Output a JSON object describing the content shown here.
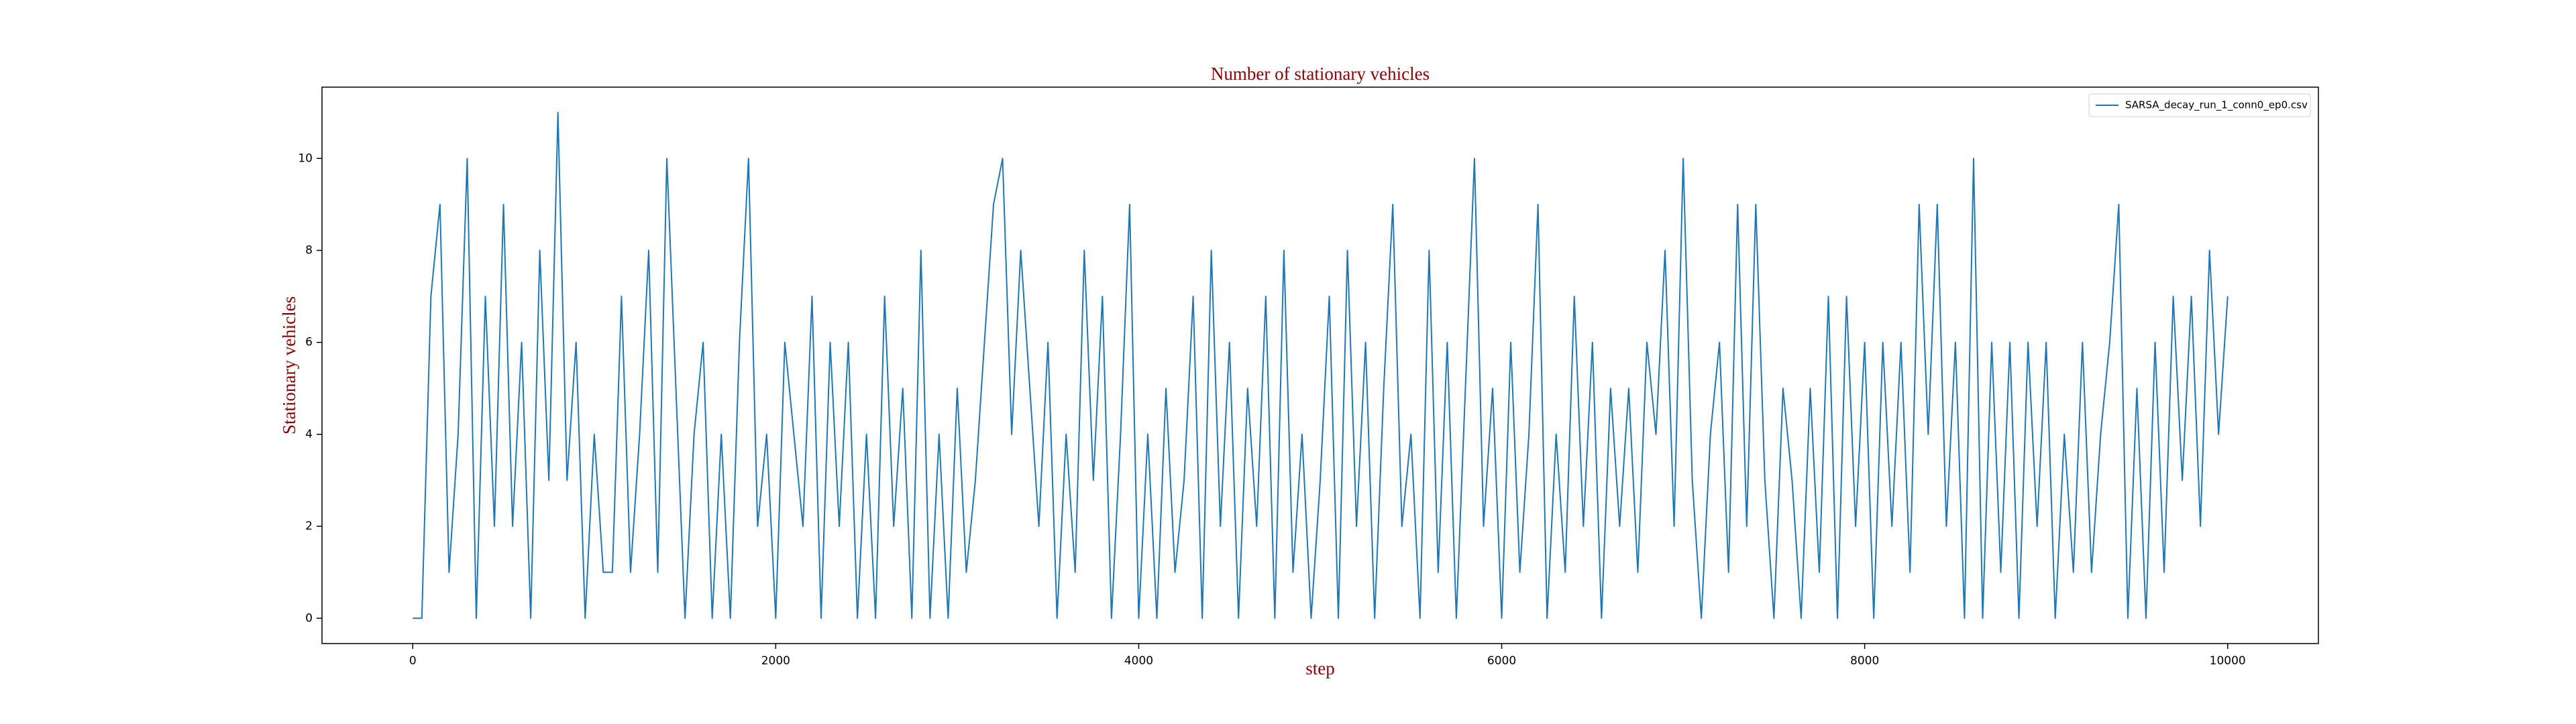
{
  "chart_data": {
    "type": "line",
    "title": "Number of stationary vehicles",
    "x_label": "step",
    "y_label": "Stationary vehicles",
    "x": [
      0,
      50,
      100,
      150,
      200,
      250,
      300,
      350,
      400,
      450,
      500,
      550,
      600,
      650,
      700,
      750,
      800,
      850,
      900,
      950,
      1000,
      1050,
      1100,
      1150,
      1200,
      1250,
      1300,
      1350,
      1400,
      1450,
      1500,
      1550,
      1600,
      1650,
      1700,
      1750,
      1800,
      1850,
      1900,
      1950,
      2000,
      2050,
      2100,
      2150,
      2200,
      2250,
      2300,
      2350,
      2400,
      2450,
      2500,
      2550,
      2600,
      2650,
      2700,
      2750,
      2800,
      2850,
      2900,
      2950,
      3000,
      3050,
      3100,
      3150,
      3200,
      3250,
      3300,
      3350,
      3400,
      3450,
      3500,
      3550,
      3600,
      3650,
      3700,
      3750,
      3800,
      3850,
      3900,
      3950,
      4000,
      4050,
      4100,
      4150,
      4200,
      4250,
      4300,
      4350,
      4400,
      4450,
      4500,
      4550,
      4600,
      4650,
      4700,
      4750,
      4800,
      4850,
      4900,
      4950,
      5000,
      5050,
      5100,
      5150,
      5200,
      5250,
      5300,
      5350,
      5400,
      5450,
      5500,
      5550,
      5600,
      5650,
      5700,
      5750,
      5800,
      5850,
      5900,
      5950,
      6000,
      6050,
      6100,
      6150,
      6200,
      6250,
      6300,
      6350,
      6400,
      6450,
      6500,
      6550,
      6600,
      6650,
      6700,
      6750,
      6800,
      6850,
      6900,
      6950,
      7000,
      7050,
      7100,
      7150,
      7200,
      7250,
      7300,
      7350,
      7400,
      7450,
      7500,
      7550,
      7600,
      7650,
      7700,
      7750,
      7800,
      7850,
      7900,
      7950,
      8000,
      8050,
      8100,
      8150,
      8200,
      8250,
      8300,
      8350,
      8400,
      8450,
      8500,
      8550,
      8600,
      8650,
      8700,
      8750,
      8800,
      8850,
      8900,
      8950,
      9000,
      9050,
      9100,
      9150,
      9200,
      9250,
      9300,
      9350,
      9400,
      9450,
      9500,
      9550,
      9600,
      9650,
      9700,
      9750,
      9800,
      9850,
      9900,
      9950,
      10000
    ],
    "series": [
      {
        "name": "SARSA_decay_run_1_conn0_ep0.csv",
        "color": "#1f77b4",
        "values": [
          0,
          0,
          7,
          9,
          1,
          4,
          10,
          0,
          7,
          2,
          9,
          2,
          6,
          0,
          8,
          3,
          11,
          3,
          6,
          0,
          4,
          1,
          1,
          7,
          1,
          4,
          8,
          1,
          10,
          5,
          0,
          4,
          6,
          0,
          4,
          0,
          6,
          10,
          2,
          4,
          0,
          6,
          4,
          2,
          7,
          0,
          6,
          2,
          6,
          0,
          4,
          0,
          7,
          2,
          5,
          0,
          8,
          0,
          4,
          0,
          5,
          1,
          3,
          6,
          9,
          10,
          4,
          8,
          5,
          2,
          6,
          0,
          4,
          1,
          8,
          3,
          7,
          0,
          4,
          9,
          0,
          4,
          0,
          5,
          1,
          3,
          7,
          0,
          8,
          2,
          6,
          0,
          5,
          2,
          7,
          0,
          8,
          1,
          4,
          0,
          3,
          7,
          0,
          8,
          2,
          6,
          0,
          5,
          9,
          2,
          4,
          0,
          8,
          1,
          6,
          0,
          5,
          10,
          2,
          5,
          0,
          6,
          1,
          4,
          9,
          0,
          4,
          1,
          7,
          2,
          6,
          0,
          5,
          2,
          5,
          1,
          6,
          4,
          8,
          2,
          10,
          3,
          0,
          4,
          6,
          1,
          9,
          2,
          9,
          3,
          0,
          5,
          3,
          0,
          5,
          1,
          7,
          0,
          7,
          2,
          6,
          0,
          6,
          2,
          6,
          1,
          9,
          4,
          9,
          2,
          6,
          0,
          10,
          0,
          6,
          1,
          6,
          0,
          6,
          2,
          6,
          0,
          4,
          1,
          6,
          1,
          4,
          6,
          9,
          0,
          5,
          0,
          6,
          1,
          7,
          3,
          7,
          2,
          8,
          4,
          7
        ]
      }
    ],
    "xlim": [
      -500,
      10500
    ],
    "ylim": [
      -0.55,
      11.55
    ],
    "xticks": [
      0,
      2000,
      4000,
      6000,
      8000,
      10000
    ],
    "yticks": [
      0,
      2,
      4,
      6,
      8,
      10
    ],
    "legend": "upper right"
  }
}
